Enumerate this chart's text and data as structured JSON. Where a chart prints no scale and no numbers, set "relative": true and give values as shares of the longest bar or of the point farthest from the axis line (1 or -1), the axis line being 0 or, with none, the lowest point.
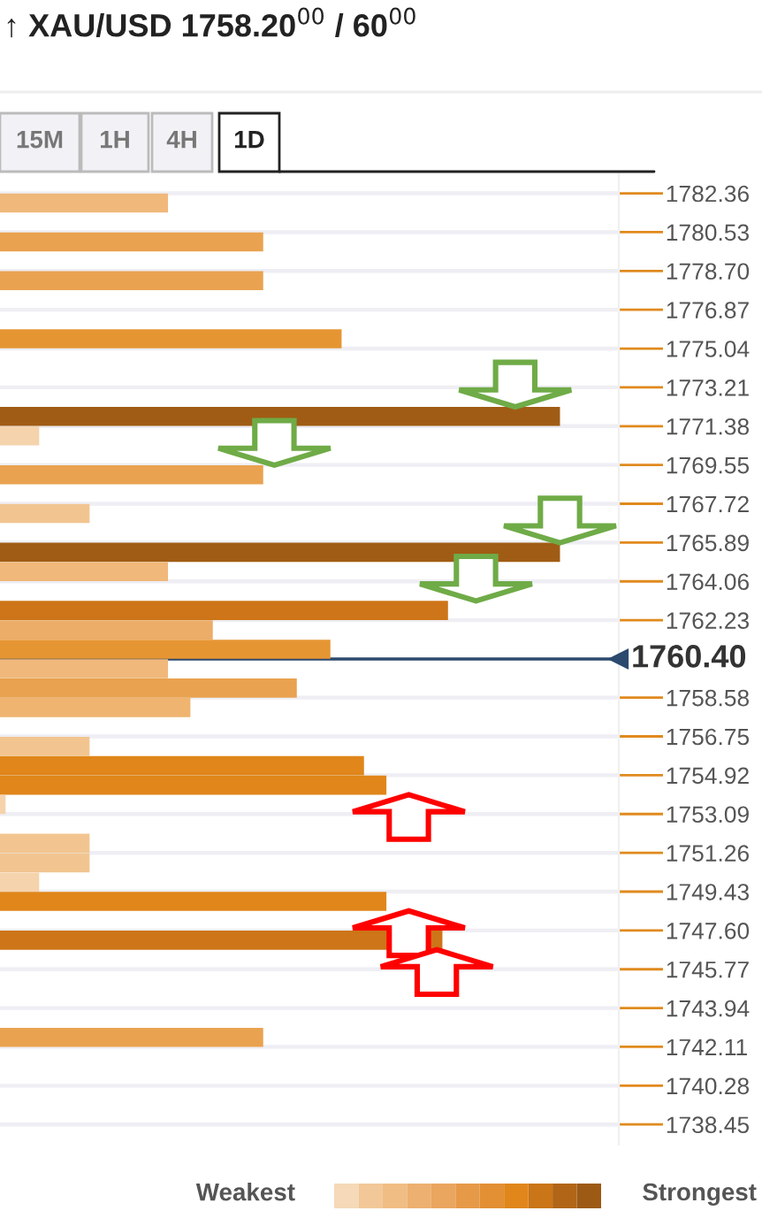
{
  "chart_data": {
    "type": "bar",
    "orientation": "horizontal",
    "relative": true,
    "title": "↑ XAU/USD 1758.20$^{00}$ / 60$^{00}$",
    "annotations": [
      "15M",
      "1H",
      "4H",
      "1D",
      "Weakest",
      "Strongest"
    ],
    "x": [
      1781.9,
      1780.07,
      1778.24,
      1775.5,
      1771.84,
      1770.92,
      1769.09,
      1767.26,
      1765.43,
      1764.52,
      1762.69,
      1761.77,
      1760.86,
      1759.94,
      1759.03,
      1758.11,
      1756.28,
      1755.37,
      1754.45,
      1753.54,
      1751.71,
      1750.79,
      1749.88,
      1748.97,
      1747.14,
      1742.56
    ],
    "values": [
      0.3,
      0.47,
      0.47,
      0.61,
      1,
      0.07,
      0.47,
      0.16,
      1,
      0.3,
      0.8,
      0.38,
      0.59,
      0.3,
      0.53,
      0.34,
      0.16,
      0.65,
      0.69,
      0.01,
      0.16,
      0.16,
      0.07,
      0.69,
      0.79,
      0.47
    ],
    "colors": [
      "#f0b87a",
      "#e9a250",
      "#e9a250",
      "#e69533",
      "#a05c14",
      "#f5d3ad",
      "#e9a250",
      "#f2c590",
      "#a05c14",
      "#f0b87a",
      "#cd7518",
      "#ecad68",
      "#e69533",
      "#f0b87a",
      "#e9a250",
      "#eeb470",
      "#f2c590",
      "#e0861a",
      "#e0861a",
      "#f5d3ad",
      "#f2c590",
      "#f2c590",
      "#f5d3ad",
      "#e0861a",
      "#cd7518",
      "#e9a250"
    ],
    "ylim": [
      1737.5,
      1783.3
    ],
    "yticks": [
      1782.36,
      1780.53,
      {
        "value": 1778.7,
        "label": "1778.70"
      },
      1776.87,
      1775.04,
      1773.21,
      {
        "value": 1771.38,
        "label": "1771.38"
      },
      1769.55,
      1767.72,
      1765.89,
      1764.06,
      1762.23,
      1758.58,
      1756.75,
      1754.92,
      1753.09,
      1751.26,
      1749.43,
      {
        "value": 1747.6,
        "label": "1747.60"
      },
      1745.77,
      1743.94,
      1742.11,
      1740.28,
      1738.45
    ],
    "ref_lines": [
      {
        "axis": "y",
        "value": 1760.4,
        "label": "1760.40",
        "color": "#2c4a6e"
      }
    ],
    "grid": "y"
  }
}
